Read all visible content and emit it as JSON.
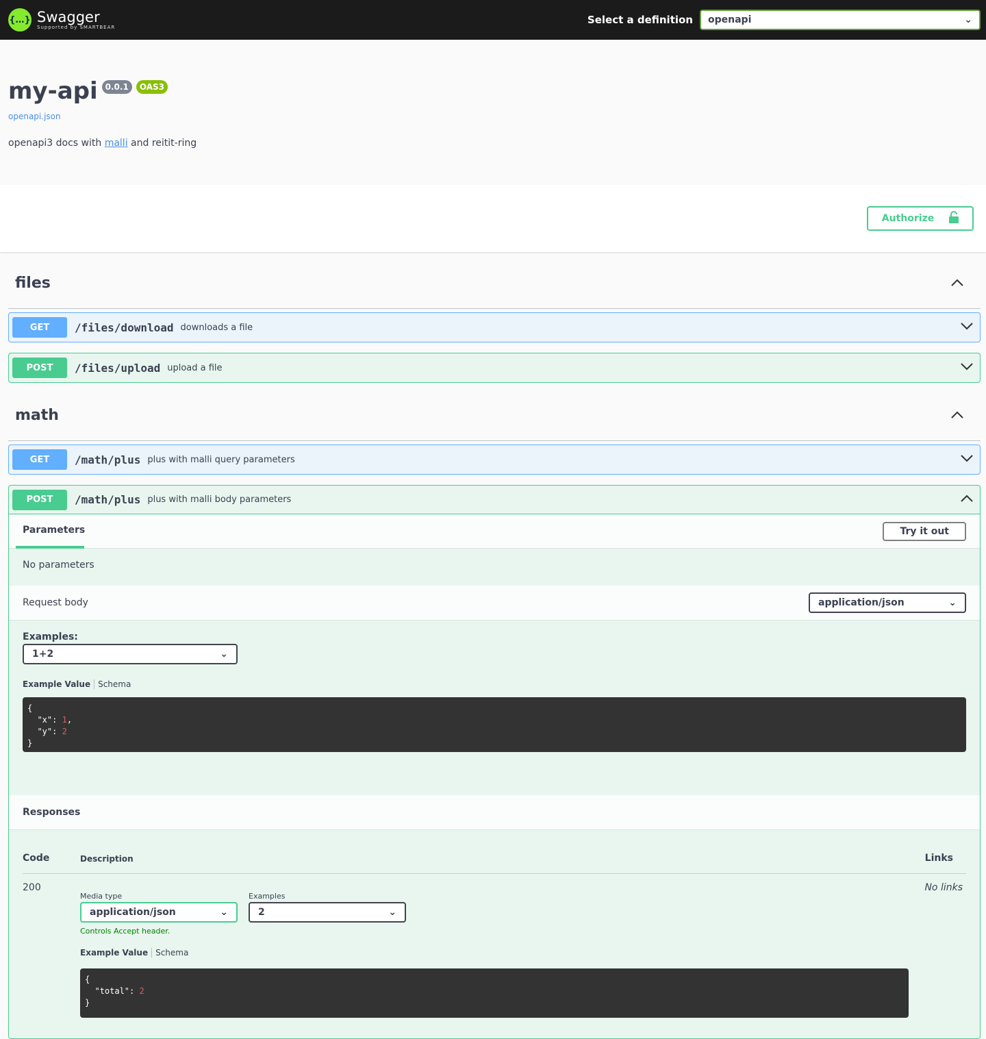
{
  "topbar": {
    "logo_text": "Swagger",
    "logo_sub": "Supported by SMARTBEAR",
    "logo_glyph": "{…}",
    "definition_label": "Select a definition",
    "definition_value": "openapi"
  },
  "info": {
    "title": "my-api",
    "version": "0.0.1",
    "oas": "OAS3",
    "spec_link": "openapi.json",
    "desc_before": "openapi3 docs with ",
    "desc_link": "malli",
    "desc_after": " and reitit-ring"
  },
  "authorize_label": "Authorize",
  "tags": [
    {
      "name": "files",
      "ops": [
        {
          "method": "GET",
          "path": "/files/download",
          "summary": "downloads a file"
        },
        {
          "method": "POST",
          "path": "/files/upload",
          "summary": "upload a file"
        }
      ]
    },
    {
      "name": "math",
      "ops": [
        {
          "method": "GET",
          "path": "/math/plus",
          "summary": "plus with malli query parameters"
        },
        {
          "method": "POST",
          "path": "/math/plus",
          "summary": "plus with malli body parameters"
        }
      ]
    }
  ],
  "expanded": {
    "params_tab": "Parameters",
    "try_label": "Try it out",
    "no_params": "No parameters",
    "request_body": "Request body",
    "content_type": "application/json",
    "examples_label": "Examples:",
    "example_selected": "1+2",
    "example_value_tab": "Example Value",
    "schema_tab": "Schema",
    "responses": "Responses",
    "col_code": "Code",
    "col_desc": "Description",
    "col_links": "Links",
    "resp_code": "200",
    "media_type_label": "Media type",
    "media_type": "application/json",
    "resp_examples_label": "Examples",
    "resp_example": "2",
    "controls_accept": "Controls Accept header.",
    "no_links": "No links"
  },
  "colors": {
    "get": "#61affe",
    "post": "#49cc90",
    "topbar": "#1b1b1b"
  }
}
